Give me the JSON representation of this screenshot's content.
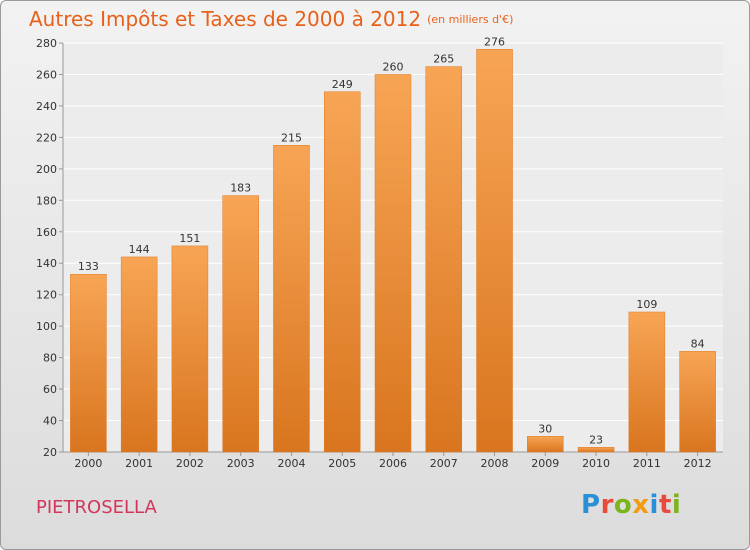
{
  "title": "Autres Impôts et Taxes de 2000 à 2012",
  "subtitle": "(en milliers d'€)",
  "town": "PIETROSELLA",
  "logo": "Proxiti",
  "colors": {
    "title": "#e8611a",
    "town": "#d3365a",
    "bar_light": "#f7a555",
    "bar_dark": "#d9751f",
    "logo": [
      "#2a8fd6",
      "#e84b3c",
      "#7ab51d",
      "#f39c12",
      "#2a8fd6",
      "#e84b3c",
      "#7ab51d"
    ]
  },
  "chart_data": {
    "type": "bar",
    "categories": [
      "2000",
      "2001",
      "2002",
      "2003",
      "2004",
      "2005",
      "2006",
      "2007",
      "2008",
      "2009",
      "2010",
      "2011",
      "2012"
    ],
    "values": [
      133,
      144,
      151,
      183,
      215,
      249,
      260,
      265,
      276,
      30,
      23,
      109,
      84
    ],
    "ylim": [
      20,
      280
    ],
    "yticks": [
      20,
      40,
      60,
      80,
      100,
      120,
      140,
      160,
      180,
      200,
      220,
      240,
      260,
      280
    ],
    "grid": true
  }
}
